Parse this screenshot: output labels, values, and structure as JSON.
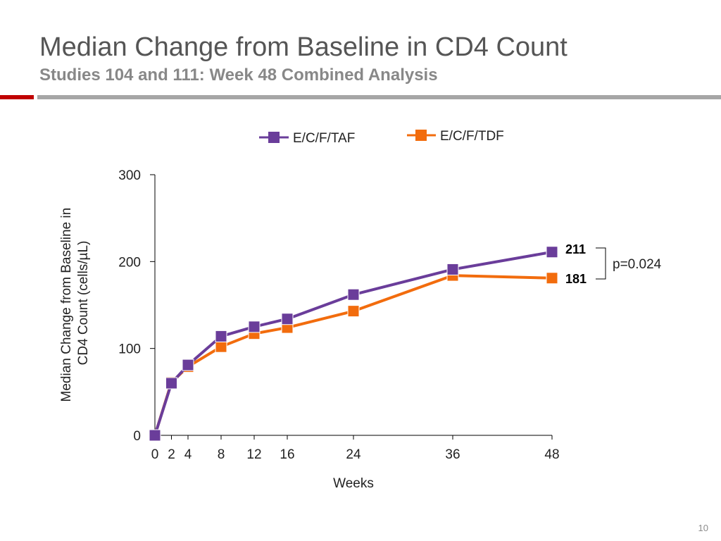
{
  "header": {
    "title": "Median Change from Baseline in CD4 Count",
    "subtitle": "Studies 104 and 111: Week 48 Combined Analysis"
  },
  "footer": {
    "page_number": "10"
  },
  "colors": {
    "accent_red": "#c00000",
    "rule_gray": "#a6a6a6",
    "taf": "#6a3d9a",
    "tdf": "#f26c0d"
  },
  "chart_data": {
    "type": "line",
    "title": "",
    "xlabel": "Weeks",
    "ylabel_lines": [
      "Median Change from Baseline in",
      "CD4 Count (cells/µL)"
    ],
    "x": [
      0,
      2,
      4,
      8,
      12,
      16,
      24,
      36,
      48
    ],
    "x_tick_labels": [
      "0",
      "2",
      "4",
      "8",
      "12",
      "16",
      "24",
      "36",
      "48"
    ],
    "y_ticks": [
      0,
      100,
      200,
      300
    ],
    "xlim": [
      0,
      48
    ],
    "ylim": [
      0,
      300
    ],
    "legend_position": "top-center",
    "series": [
      {
        "name": "E/C/F/TAF",
        "color": "#6a3d9a",
        "marker": "square",
        "values": [
          0,
          60,
          81,
          114,
          125,
          134,
          162,
          191,
          211
        ]
      },
      {
        "name": "E/C/F/TDF",
        "color": "#f26c0d",
        "marker": "square",
        "values": [
          0,
          61,
          79,
          102,
          117,
          124,
          143,
          184,
          181
        ]
      }
    ],
    "end_labels": [
      "211",
      "181"
    ],
    "annotation": "p=0.024"
  }
}
